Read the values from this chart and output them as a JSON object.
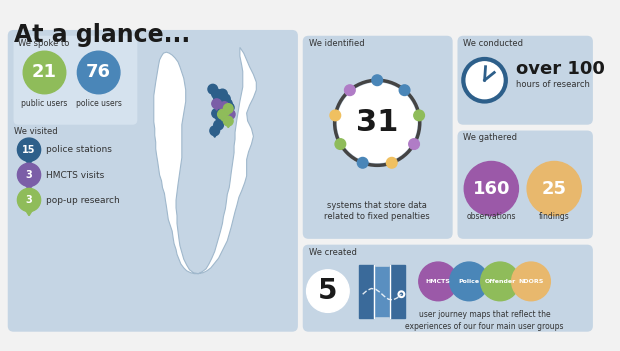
{
  "title": "At a glance...",
  "bg_color": "#f2f2f2",
  "panel_color": "#c5d5e4",
  "inner_panel_color": "#d5e2ee",
  "spoke_to": {
    "label": "We spoke to",
    "items": [
      {
        "number": "21",
        "sublabel": "public users",
        "color": "#8fbc5a"
      },
      {
        "number": "76",
        "sublabel": "police users",
        "color": "#4a86b8"
      }
    ]
  },
  "visited": {
    "label": "We visited",
    "items": [
      {
        "number": "15",
        "sublabel": "police stations",
        "color": "#2d5f8a"
      },
      {
        "number": "3",
        "sublabel": "HMCTS visits",
        "color": "#7b5ea7"
      },
      {
        "number": "3",
        "sublabel": "pop-up research",
        "color": "#8fbc5a"
      }
    ]
  },
  "identified": {
    "label": "We identified",
    "number": "31",
    "sublabel": "systems that store data\nrelated to fixed penalties",
    "ring_colors": [
      "#4a86b8",
      "#b07cc6",
      "#f0c060",
      "#8fbc5a",
      "#4a86b8",
      "#f0c060",
      "#b07cc6",
      "#8fbc5a",
      "#4a86b8"
    ]
  },
  "conducted": {
    "label": "We conducted",
    "number_bold": "over 100",
    "sublabel": "hours of research"
  },
  "gathered": {
    "label": "We gathered",
    "items": [
      {
        "number": "160",
        "sublabel": "observations",
        "color": "#9b59a8"
      },
      {
        "number": "25",
        "sublabel": "findings",
        "color": "#e8b86d"
      }
    ]
  },
  "created": {
    "label": "We created",
    "number": "5",
    "sublabel": "user journey maps that reflect the\nexperiences of our four main user groups",
    "circles": [
      {
        "label": "HMCTS",
        "color": "#9b59a8"
      },
      {
        "label": "Police",
        "color": "#4a86b8"
      },
      {
        "label": "Offender",
        "color": "#8fbc5a"
      },
      {
        "label": "NDORS",
        "color": "#e8b86d"
      }
    ]
  }
}
